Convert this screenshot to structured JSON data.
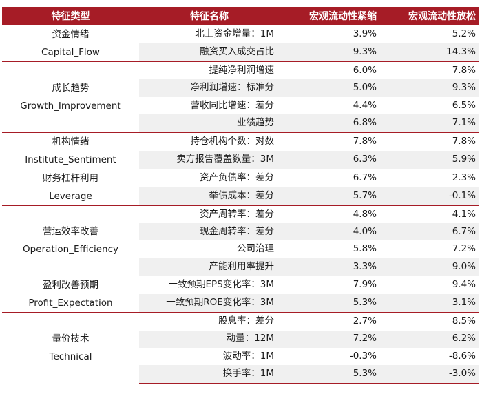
{
  "table": {
    "headers": [
      "特征类型",
      "特征名称",
      "宏观流动性紧缩",
      "宏观流动性放松"
    ],
    "groups": [
      {
        "category_zh": "资金情绪",
        "category_en": "Capital_Flow",
        "rows": [
          {
            "name": "北上资金增量：1M",
            "tight": "3.9%",
            "loose": "5.2%"
          },
          {
            "name": "融资买入成交占比",
            "tight": "9.3%",
            "loose": "14.3%"
          }
        ]
      },
      {
        "category_zh": "成长趋势",
        "category_en": "Growth_Improvement",
        "rows": [
          {
            "name": "提纯净利润增速",
            "tight": "6.0%",
            "loose": "7.8%"
          },
          {
            "name": "净利润增速：标准分",
            "tight": "5.0%",
            "loose": "9.3%"
          },
          {
            "name": "营收同比增速：差分",
            "tight": "4.4%",
            "loose": "6.5%"
          },
          {
            "name": "业绩趋势",
            "tight": "6.8%",
            "loose": "7.1%"
          }
        ]
      },
      {
        "category_zh": "机构情绪",
        "category_en": "Institute_Sentiment",
        "rows": [
          {
            "name": "持仓机构个数：对数",
            "tight": "7.8%",
            "loose": "7.8%"
          },
          {
            "name": "卖方报告覆盖数量：3M",
            "tight": "6.3%",
            "loose": "5.9%"
          }
        ]
      },
      {
        "category_zh": "财务杠杆利用",
        "category_en": "Leverage",
        "rows": [
          {
            "name": "资产负债率：差分",
            "tight": "6.7%",
            "loose": "2.3%"
          },
          {
            "name": "举债成本：差分",
            "tight": "5.7%",
            "loose": "-0.1%"
          }
        ]
      },
      {
        "category_zh": "营运效率改善",
        "category_en": "Operation_Efficiency",
        "rows": [
          {
            "name": "资产周转率：差分",
            "tight": "4.8%",
            "loose": "4.1%"
          },
          {
            "name": "现金周转率：差分",
            "tight": "4.0%",
            "loose": "6.7%"
          },
          {
            "name": "公司治理",
            "tight": "5.8%",
            "loose": "7.2%"
          },
          {
            "name": "产能利用率提升",
            "tight": "3.3%",
            "loose": "9.0%"
          }
        ]
      },
      {
        "category_zh": "盈利改善预期",
        "category_en": "Profit_Expectation",
        "rows": [
          {
            "name": "一致预期EPS变化率：3M",
            "tight": "7.9%",
            "loose": "9.4%"
          },
          {
            "name": "一致预期ROE变化率：3M",
            "tight": "5.3%",
            "loose": "3.1%"
          }
        ]
      },
      {
        "category_zh": "量价技术",
        "category_en": "Technical",
        "rows": [
          {
            "name": "股息率：差分",
            "tight": "2.7%",
            "loose": "8.5%"
          },
          {
            "name": "动量：12M",
            "tight": "7.2%",
            "loose": "6.2%"
          },
          {
            "name": "波动率：1M",
            "tight": "-0.3%",
            "loose": "-8.6%"
          },
          {
            "name": "换手率：1M",
            "tight": "5.3%",
            "loose": "-3.0%"
          }
        ]
      }
    ]
  }
}
